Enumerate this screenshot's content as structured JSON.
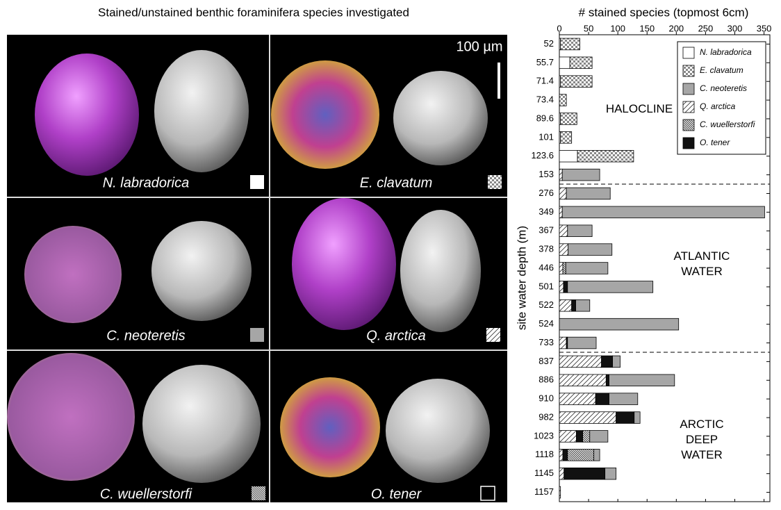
{
  "figure": {
    "title": "Stained/unstained benthic foraminifera species investigated",
    "scale_bar": "100 µm",
    "panels": [
      "N. labradorica",
      "E. clavatum",
      "C. neoteretis",
      "Q. arctica",
      "C. wuellerstorfi",
      "O. tener"
    ]
  },
  "chart_data": {
    "type": "stacked-bar-horizontal",
    "title": "# stained species (topmost 6cm)",
    "y_label": "site  water depth (m)",
    "categories": [
      "52",
      "55.7",
      "71.4",
      "73.4",
      "89.6",
      "101",
      "123.6",
      "153",
      "276",
      "349",
      "367",
      "378",
      "446",
      "501",
      "522",
      "524",
      "733",
      "837",
      "886",
      "910",
      "982",
      "1023",
      "1118",
      "1145",
      "1157"
    ],
    "series": [
      {
        "name": "N. labradorica",
        "color": "#ffffff",
        "pattern": "none",
        "values": [
          2,
          18,
          2,
          0,
          2,
          2,
          31,
          0,
          0,
          0,
          0,
          0,
          0,
          0,
          0,
          0,
          0,
          0,
          0,
          0,
          0,
          0,
          0,
          0,
          0
        ]
      },
      {
        "name": "E. clavatum",
        "color": "#ffffff",
        "pattern": "dots",
        "values": [
          33,
          38,
          54,
          12,
          28,
          19,
          96,
          0,
          0,
          0,
          0,
          0,
          0,
          0,
          0,
          0,
          0,
          0,
          0,
          0,
          0,
          0,
          0,
          0,
          0
        ]
      },
      {
        "name": "C. neoteretis",
        "color": "#a6a6a6",
        "pattern": "none",
        "values": [
          0,
          0,
          0,
          0,
          0,
          0,
          0,
          64,
          75,
          346,
          42,
          75,
          72,
          146,
          24,
          204,
          49,
          13,
          112,
          49,
          10,
          31,
          10,
          19,
          0
        ]
      },
      {
        "name": "Q. arctica",
        "color": "#ffffff",
        "pattern": "diag",
        "values": [
          0,
          0,
          0,
          0,
          0,
          0,
          0,
          5,
          12,
          5,
          14,
          15,
          6,
          7,
          21,
          0,
          12,
          72,
          80,
          62,
          97,
          29,
          6,
          8,
          2
        ]
      },
      {
        "name": "C. wuellerstorfi",
        "color": "#ffffff",
        "pattern": "dense",
        "values": [
          0,
          0,
          0,
          0,
          0,
          0,
          0,
          0,
          0,
          0,
          0,
          0,
          5,
          0,
          0,
          0,
          0,
          0,
          0,
          0,
          0,
          12,
          45,
          0,
          0
        ]
      },
      {
        "name": "O. tener",
        "color": "#111111",
        "pattern": "none",
        "values": [
          0,
          0,
          0,
          0,
          0,
          0,
          0,
          0,
          0,
          0,
          0,
          0,
          0,
          7,
          7,
          0,
          2,
          19,
          5,
          23,
          31,
          11,
          8,
          70,
          0
        ]
      }
    ],
    "stack_order": [
      0,
      1,
      3,
      5,
      4,
      2
    ],
    "annotations": [
      [
        "HALOCLINE"
      ],
      [
        "ATLANTIC",
        "WATER"
      ],
      [
        "ARCTIC",
        "DEEP",
        "WATER"
      ]
    ],
    "xlim": [
      0,
      360
    ],
    "xticks": [
      0,
      50,
      100,
      150,
      200,
      250,
      300,
      350
    ]
  }
}
